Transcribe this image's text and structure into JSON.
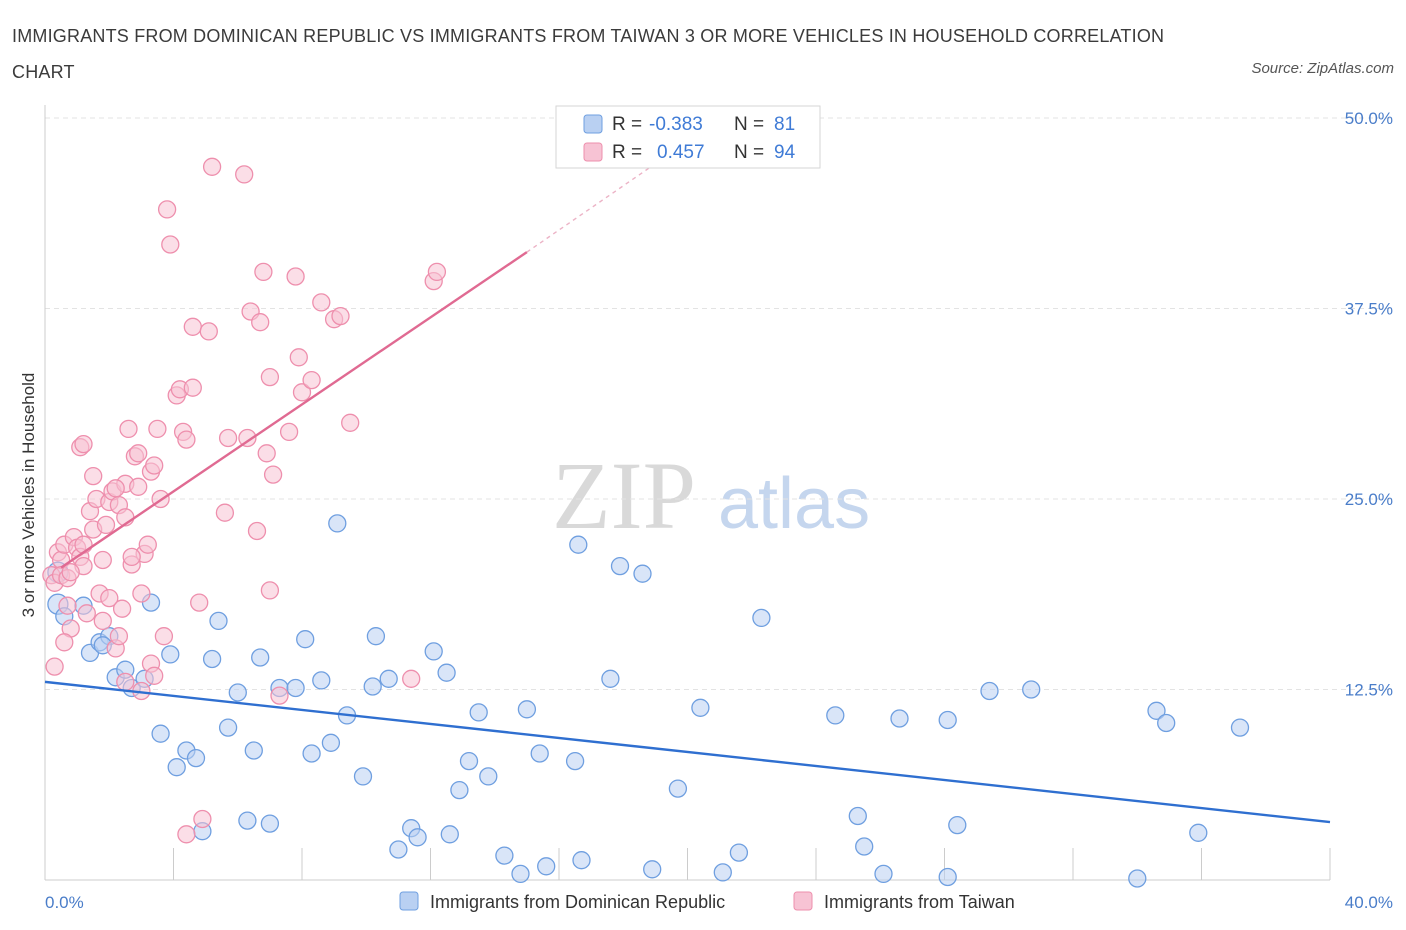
{
  "chart_data": {
    "type": "scatter",
    "title": "IMMIGRANTS FROM DOMINICAN REPUBLIC VS IMMIGRANTS FROM TAIWAN 3 OR MORE VEHICLES IN HOUSEHOLD CORRELATION CHART",
    "source": "Source: ZipAtlas.com",
    "xlabel": "",
    "ylabel": "3 or more Vehicles in Household",
    "xlim": [
      0,
      40
    ],
    "ylim": [
      0,
      50
    ],
    "x_tick_labels": [
      "0.0%",
      "40.0%"
    ],
    "y_ticks": [
      12.5,
      25.0,
      37.5,
      50.0
    ],
    "y_tick_labels": [
      "12.5%",
      "25.0%",
      "37.5%",
      "50.0%"
    ],
    "watermark": {
      "zip": "ZIP",
      "atlas": "atlas"
    },
    "legend": {
      "r_label": "R =",
      "n_label": "N =",
      "entries": [
        {
          "name": "Immigrants from Dominican Republic",
          "r": "-0.383",
          "n": "81",
          "color": "#6f9fe0"
        },
        {
          "name": "Immigrants from Taiwan",
          "r": "0.457",
          "n": "94",
          "color": "#ee8fad"
        }
      ]
    },
    "series": [
      {
        "name": "Immigrants from Dominican Republic",
        "color": "#6f9fe0",
        "fill": "#b9d0f2",
        "trend": {
          "x0": 0,
          "y0": 13.0,
          "x1": 40,
          "y1": 3.8,
          "color": "#2f6fd0"
        },
        "points": [
          [
            0.4,
            20.2
          ],
          [
            0.4,
            18.1
          ],
          [
            0.6,
            17.3
          ],
          [
            1.2,
            18.0
          ],
          [
            1.4,
            14.9
          ],
          [
            1.7,
            15.6
          ],
          [
            2.0,
            16.0
          ],
          [
            2.2,
            13.3
          ],
          [
            2.5,
            13.8
          ],
          [
            2.7,
            12.6
          ],
          [
            3.1,
            13.2
          ],
          [
            3.3,
            18.2
          ],
          [
            3.6,
            9.6
          ],
          [
            3.9,
            14.8
          ],
          [
            4.1,
            7.4
          ],
          [
            4.4,
            8.5
          ],
          [
            4.7,
            8.0
          ],
          [
            4.9,
            3.2
          ],
          [
            5.2,
            14.5
          ],
          [
            5.4,
            17.0
          ],
          [
            5.7,
            10.0
          ],
          [
            6.0,
            12.3
          ],
          [
            6.3,
            3.9
          ],
          [
            6.5,
            8.5
          ],
          [
            6.7,
            14.6
          ],
          [
            7.0,
            3.7
          ],
          [
            7.3,
            12.6
          ],
          [
            7.8,
            12.6
          ],
          [
            8.1,
            15.8
          ],
          [
            8.3,
            8.3
          ],
          [
            8.6,
            13.1
          ],
          [
            8.9,
            9.0
          ],
          [
            9.1,
            23.4
          ],
          [
            9.4,
            10.8
          ],
          [
            9.9,
            6.8
          ],
          [
            10.2,
            12.7
          ],
          [
            10.3,
            16.0
          ],
          [
            10.7,
            13.2
          ],
          [
            11.0,
            2.0
          ],
          [
            11.4,
            3.4
          ],
          [
            11.6,
            2.8
          ],
          [
            12.1,
            15.0
          ],
          [
            12.5,
            13.6
          ],
          [
            12.6,
            3.0
          ],
          [
            12.9,
            5.9
          ],
          [
            13.2,
            7.8
          ],
          [
            13.5,
            11.0
          ],
          [
            13.8,
            6.8
          ],
          [
            14.3,
            1.6
          ],
          [
            14.8,
            0.4
          ],
          [
            15.0,
            11.2
          ],
          [
            15.4,
            8.3
          ],
          [
            15.6,
            0.9
          ],
          [
            16.5,
            7.8
          ],
          [
            16.6,
            22.0
          ],
          [
            16.7,
            1.3
          ],
          [
            17.6,
            13.2
          ],
          [
            17.9,
            20.6
          ],
          [
            18.9,
            0.7
          ],
          [
            18.6,
            20.1
          ],
          [
            19.7,
            6.0
          ],
          [
            20.4,
            11.3
          ],
          [
            21.1,
            0.5
          ],
          [
            21.6,
            1.8
          ],
          [
            22.3,
            17.2
          ],
          [
            24.6,
            10.8
          ],
          [
            25.3,
            4.2
          ],
          [
            25.5,
            2.2
          ],
          [
            26.1,
            0.4
          ],
          [
            26.6,
            10.6
          ],
          [
            28.1,
            10.5
          ],
          [
            28.1,
            0.2
          ],
          [
            28.4,
            3.6
          ],
          [
            29.4,
            12.4
          ],
          [
            30.7,
            12.5
          ],
          [
            34.0,
            0.1
          ],
          [
            34.6,
            11.1
          ],
          [
            34.9,
            10.3
          ],
          [
            35.9,
            3.1
          ],
          [
            37.2,
            10.0
          ],
          [
            1.8,
            15.4
          ]
        ]
      },
      {
        "name": "Immigrants from Taiwan",
        "color": "#ee8fad",
        "fill": "#f7c3d4",
        "trend": {
          "x0": 0.5,
          "y0": 20.5,
          "x1": 15.0,
          "y1": 41.2,
          "dash_to": [
            19.0,
            47.0
          ],
          "color": "#e06a92"
        },
        "points": [
          [
            0.2,
            20.0
          ],
          [
            0.3,
            19.5
          ],
          [
            0.3,
            14.0
          ],
          [
            0.4,
            21.5
          ],
          [
            0.5,
            21.0
          ],
          [
            0.5,
            20.0
          ],
          [
            0.6,
            22.0
          ],
          [
            0.7,
            19.8
          ],
          [
            0.7,
            18.0
          ],
          [
            0.8,
            16.5
          ],
          [
            0.9,
            22.5
          ],
          [
            1.0,
            21.8
          ],
          [
            1.1,
            21.2
          ],
          [
            1.2,
            20.6
          ],
          [
            1.2,
            22.0
          ],
          [
            1.3,
            17.5
          ],
          [
            1.4,
            24.2
          ],
          [
            1.5,
            23.0
          ],
          [
            1.5,
            26.5
          ],
          [
            1.6,
            25.0
          ],
          [
            1.7,
            18.8
          ],
          [
            1.8,
            21.0
          ],
          [
            1.9,
            23.3
          ],
          [
            2.0,
            18.5
          ],
          [
            2.0,
            24.8
          ],
          [
            2.1,
            25.5
          ],
          [
            2.2,
            15.2
          ],
          [
            2.3,
            24.6
          ],
          [
            2.3,
            16.0
          ],
          [
            2.4,
            17.8
          ],
          [
            2.5,
            23.8
          ],
          [
            2.5,
            26.0
          ],
          [
            2.7,
            20.7
          ],
          [
            2.8,
            27.8
          ],
          [
            2.9,
            25.8
          ],
          [
            2.9,
            28.0
          ],
          [
            3.0,
            18.8
          ],
          [
            3.0,
            12.4
          ],
          [
            3.1,
            21.4
          ],
          [
            3.2,
            22.0
          ],
          [
            3.3,
            26.8
          ],
          [
            3.3,
            14.2
          ],
          [
            3.4,
            27.2
          ],
          [
            3.5,
            29.6
          ],
          [
            3.6,
            25.0
          ],
          [
            3.7,
            16.0
          ],
          [
            3.8,
            44.0
          ],
          [
            3.9,
            41.7
          ],
          [
            4.1,
            31.8
          ],
          [
            4.2,
            32.2
          ],
          [
            4.3,
            29.4
          ],
          [
            4.4,
            28.9
          ],
          [
            4.6,
            32.3
          ],
          [
            4.6,
            36.3
          ],
          [
            4.8,
            18.2
          ],
          [
            4.9,
            4.0
          ],
          [
            5.1,
            36.0
          ],
          [
            5.2,
            46.8
          ],
          [
            5.6,
            24.1
          ],
          [
            5.7,
            29.0
          ],
          [
            6.2,
            46.3
          ],
          [
            6.3,
            29.0
          ],
          [
            6.4,
            37.3
          ],
          [
            6.6,
            22.9
          ],
          [
            6.7,
            36.6
          ],
          [
            6.8,
            39.9
          ],
          [
            6.9,
            28.0
          ],
          [
            7.0,
            19.0
          ],
          [
            7.0,
            33.0
          ],
          [
            7.1,
            26.6
          ],
          [
            7.3,
            12.1
          ],
          [
            7.6,
            29.4
          ],
          [
            7.8,
            39.6
          ],
          [
            7.9,
            34.3
          ],
          [
            8.0,
            32.0
          ],
          [
            8.3,
            32.8
          ],
          [
            8.6,
            37.9
          ],
          [
            9.0,
            36.8
          ],
          [
            9.2,
            37.0
          ],
          [
            9.5,
            30.0
          ],
          [
            11.4,
            13.2
          ],
          [
            12.1,
            39.3
          ],
          [
            12.2,
            39.9
          ],
          [
            1.1,
            28.4
          ],
          [
            1.2,
            28.6
          ],
          [
            2.6,
            29.6
          ],
          [
            0.6,
            15.6
          ],
          [
            1.8,
            17.0
          ],
          [
            2.5,
            13.0
          ],
          [
            4.4,
            3.0
          ],
          [
            0.8,
            20.2
          ],
          [
            2.2,
            25.7
          ],
          [
            2.7,
            21.2
          ],
          [
            3.4,
            13.4
          ]
        ]
      }
    ]
  }
}
